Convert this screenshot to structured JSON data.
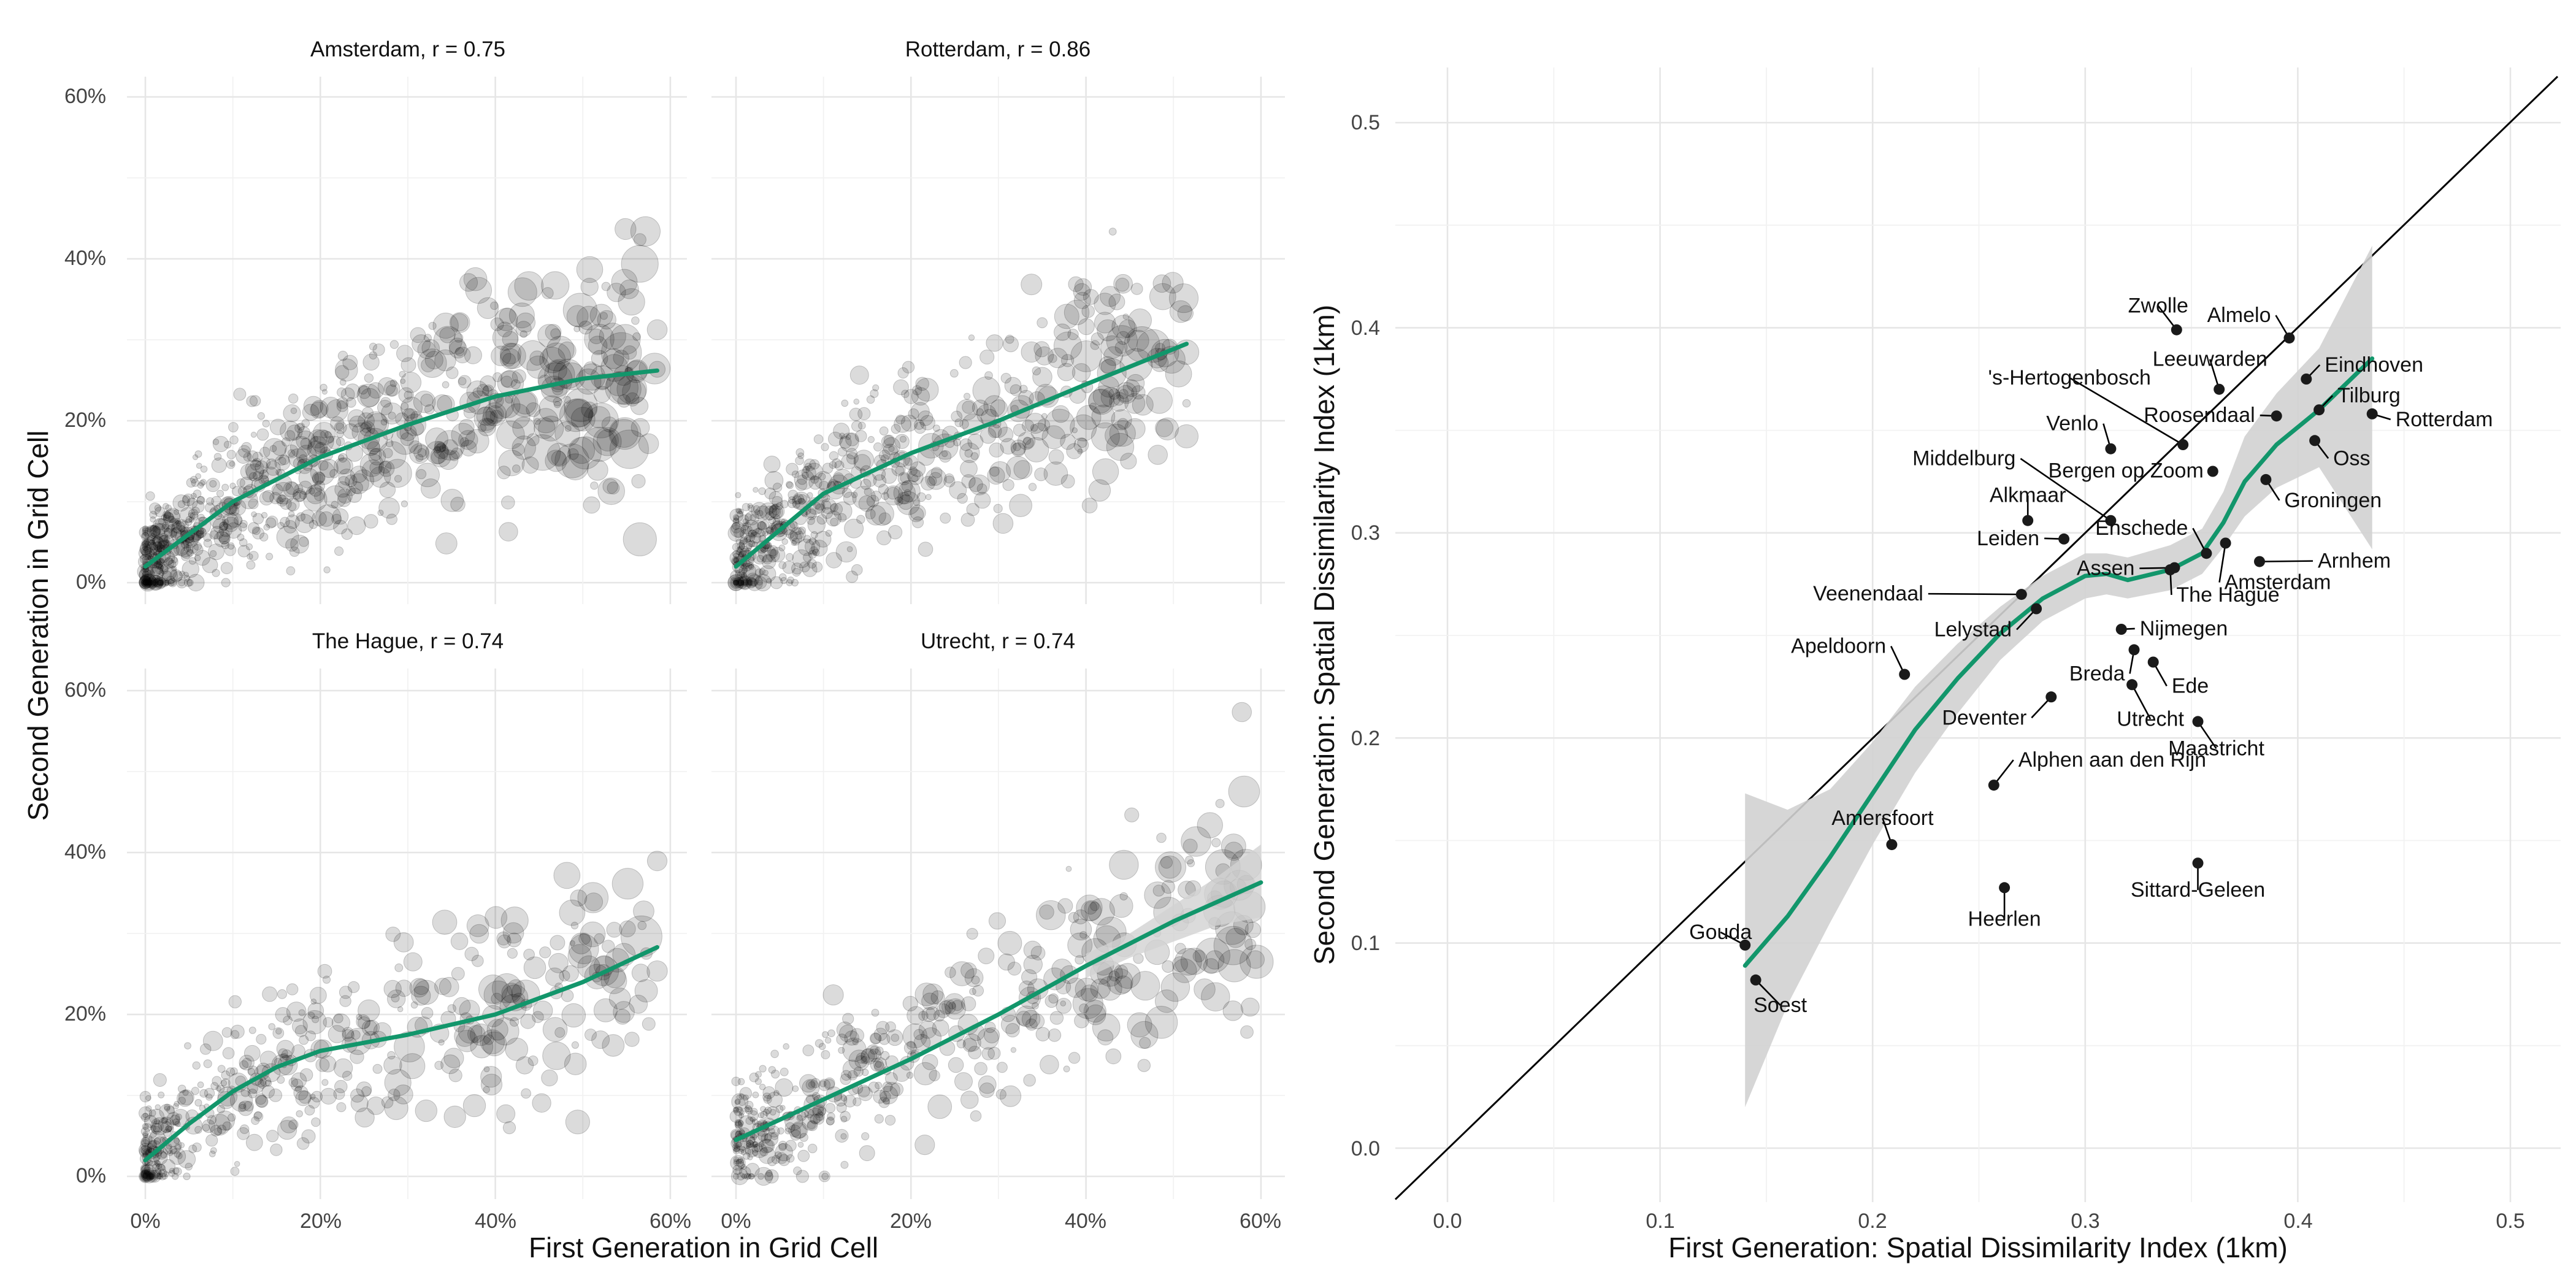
{
  "colors": {
    "smooth": "#12966b",
    "band": "#d2d2d2",
    "point": "#000000",
    "ref_line": "#000000"
  },
  "chart_data": [
    {
      "type": "scatter",
      "facets": [
        {
          "title": "Amsterdam, r = 0.75",
          "smooth_x": [
            0,
            0.1,
            0.2,
            0.3,
            0.4,
            0.5,
            0.585
          ],
          "smooth_y": [
            0.02,
            0.1,
            0.155,
            0.195,
            0.23,
            0.252,
            0.262
          ],
          "band_x": [],
          "band_lo": [],
          "band_hi": []
        },
        {
          "title": "Rotterdam, r = 0.86",
          "smooth_x": [
            0,
            0.1,
            0.2,
            0.3,
            0.4,
            0.515
          ],
          "smooth_y": [
            0.02,
            0.11,
            0.16,
            0.2,
            0.245,
            0.295
          ],
          "band_x": [],
          "band_lo": [],
          "band_hi": []
        },
        {
          "title": "The Hague, r = 0.74",
          "smooth_x": [
            0,
            0.05,
            0.1,
            0.15,
            0.2,
            0.3,
            0.4,
            0.5,
            0.585
          ],
          "smooth_y": [
            0.02,
            0.065,
            0.105,
            0.135,
            0.155,
            0.175,
            0.2,
            0.24,
            0.283
          ],
          "band_x": [],
          "band_lo": [],
          "band_hi": []
        },
        {
          "title": "Utrecht, r = 0.74",
          "smooth_x": [
            0,
            0.1,
            0.2,
            0.3,
            0.4,
            0.5,
            0.6
          ],
          "smooth_y": [
            0.045,
            0.095,
            0.145,
            0.2,
            0.26,
            0.315,
            0.363
          ],
          "band_x": [
            0.4,
            0.45,
            0.5,
            0.55,
            0.6
          ],
          "band_lo": [
            0.245,
            0.27,
            0.29,
            0.31,
            0.32
          ],
          "band_hi": [
            0.275,
            0.3,
            0.335,
            0.37,
            0.41
          ]
        }
      ],
      "x_tick_labels": [
        "0%",
        "20%",
        "40%",
        "60%"
      ],
      "y_tick_labels": [
        "0%",
        "20%",
        "40%",
        "60%"
      ],
      "xlim": [
        -0.02,
        0.63
      ],
      "ylim": [
        -0.015,
        0.625
      ],
      "xlabel": "First Generation in Grid Cell",
      "ylabel": "Second Generation in Grid Cell"
    },
    {
      "type": "scatter",
      "xlabel": "First Generation: Spatial Dissimilarity Index (1km)",
      "ylabel": "Second Generation: Spatial Dissimilarity Index (1km)",
      "xlim": [
        -0.025,
        0.53
      ],
      "ylim": [
        -0.025,
        0.525
      ],
      "x_ticks": [
        0.0,
        0.1,
        0.2,
        0.3,
        0.4,
        0.5
      ],
      "y_ticks": [
        0.0,
        0.1,
        0.2,
        0.3,
        0.4,
        0.5
      ],
      "x_tick_labels": [
        "0.0",
        "0.1",
        "0.2",
        "0.3",
        "0.4",
        "0.5"
      ],
      "y_tick_labels": [
        "0.0",
        "0.1",
        "0.2",
        "0.3",
        "0.4",
        "0.5"
      ],
      "reference_line": "y = x",
      "smooth_x": [
        0.14,
        0.16,
        0.18,
        0.2,
        0.22,
        0.24,
        0.26,
        0.28,
        0.3,
        0.31,
        0.32,
        0.34,
        0.355,
        0.365,
        0.375,
        0.39,
        0.41,
        0.435
      ],
      "smooth_y": [
        0.089,
        0.113,
        0.142,
        0.173,
        0.204,
        0.229,
        0.251,
        0.268,
        0.279,
        0.28,
        0.277,
        0.282,
        0.29,
        0.305,
        0.325,
        0.343,
        0.36,
        0.385
      ],
      "band_lo": [
        0.02,
        0.07,
        0.11,
        0.148,
        0.183,
        0.212,
        0.238,
        0.257,
        0.268,
        0.27,
        0.268,
        0.272,
        0.28,
        0.293,
        0.308,
        0.322,
        0.332,
        0.292
      ],
      "band_hi": [
        0.173,
        0.165,
        0.175,
        0.198,
        0.225,
        0.246,
        0.264,
        0.279,
        0.29,
        0.29,
        0.288,
        0.294,
        0.302,
        0.32,
        0.347,
        0.368,
        0.39,
        0.44
      ],
      "points": [
        {
          "name": "Zwolle",
          "x": 0.343,
          "y": 0.399
        },
        {
          "name": "Almelo",
          "x": 0.396,
          "y": 0.395
        },
        {
          "name": "Eindhoven",
          "x": 0.404,
          "y": 0.375
        },
        {
          "name": "Leeuwarden",
          "x": 0.363,
          "y": 0.37
        },
        {
          "name": "Tilburg",
          "x": 0.41,
          "y": 0.36
        },
        {
          "name": "'s-Hertogenbosch",
          "x": 0.346,
          "y": 0.343
        },
        {
          "name": "Roosendaal",
          "x": 0.39,
          "y": 0.357
        },
        {
          "name": "Rotterdam",
          "x": 0.435,
          "y": 0.358
        },
        {
          "name": "Oss",
          "x": 0.408,
          "y": 0.345
        },
        {
          "name": "Venlo",
          "x": 0.312,
          "y": 0.341
        },
        {
          "name": "Groningen",
          "x": 0.385,
          "y": 0.326
        },
        {
          "name": "Middelburg",
          "x": 0.312,
          "y": 0.306
        },
        {
          "name": "Bergen op Zoom",
          "x": 0.36,
          "y": 0.33
        },
        {
          "name": "Alkmaar",
          "x": 0.273,
          "y": 0.306
        },
        {
          "name": "Amsterdam",
          "x": 0.366,
          "y": 0.295
        },
        {
          "name": "Enschede",
          "x": 0.357,
          "y": 0.29
        },
        {
          "name": "Leiden",
          "x": 0.29,
          "y": 0.297
        },
        {
          "name": "Assen",
          "x": 0.342,
          "y": 0.283
        },
        {
          "name": "The Hague",
          "x": 0.34,
          "y": 0.282
        },
        {
          "name": "Arnhem",
          "x": 0.382,
          "y": 0.286
        },
        {
          "name": "Veenendaal",
          "x": 0.27,
          "y": 0.27
        },
        {
          "name": "Lelystad",
          "x": 0.277,
          "y": 0.263
        },
        {
          "name": "Nijmegen",
          "x": 0.317,
          "y": 0.253
        },
        {
          "name": "Apeldoorn",
          "x": 0.215,
          "y": 0.231
        },
        {
          "name": "Breda",
          "x": 0.323,
          "y": 0.243
        },
        {
          "name": "Ede",
          "x": 0.332,
          "y": 0.237
        },
        {
          "name": "Utrecht",
          "x": 0.322,
          "y": 0.226
        },
        {
          "name": "Deventer",
          "x": 0.284,
          "y": 0.22
        },
        {
          "name": "Maastricht",
          "x": 0.353,
          "y": 0.208
        },
        {
          "name": "Alphen aan den Rijn",
          "x": 0.257,
          "y": 0.177
        },
        {
          "name": "Amersfoort",
          "x": 0.209,
          "y": 0.148
        },
        {
          "name": "Sittard-Geleen",
          "x": 0.353,
          "y": 0.139
        },
        {
          "name": "Heerlen",
          "x": 0.262,
          "y": 0.127
        },
        {
          "name": "Gouda",
          "x": 0.14,
          "y": 0.099
        },
        {
          "name": "Soest",
          "x": 0.145,
          "y": 0.082
        }
      ]
    }
  ]
}
